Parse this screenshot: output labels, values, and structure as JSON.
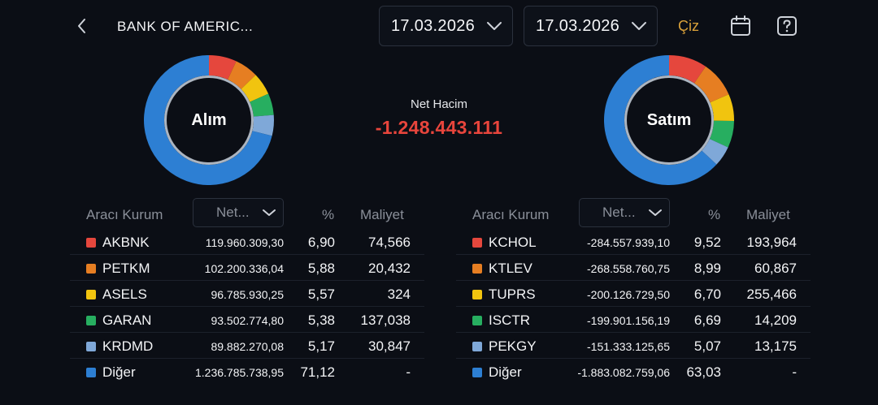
{
  "header": {
    "title": "BANK OF AMERIC...",
    "date_start": "17.03.2026",
    "date_end": "17.03.2026",
    "draw_label": "Çiz"
  },
  "icons": {
    "back": "chevron-left-icon",
    "calendar": "calendar-icon",
    "help": "question-mark-icon",
    "dropdown": "chevron-down-icon"
  },
  "summary": {
    "buy_label": "Alım",
    "sell_label": "Satım",
    "net_label": "Net Hacim",
    "net_value": "-1.248.443.111",
    "net_color": "#e8453c"
  },
  "colors": {
    "red": "#e5473d",
    "orange": "#e67e22",
    "yellow": "#f1c40f",
    "green": "#27ae60",
    "lightblue": "#7fa8d8",
    "blue": "#2d7fd3"
  },
  "buy_table": {
    "headers": {
      "broker": "Aracı Kurum",
      "net": "Net...",
      "pct": "%",
      "cost": "Maliyet"
    },
    "rows": [
      {
        "name": "AKBNK",
        "net": "119.960.309,30",
        "pct": "6,90",
        "cost": "74,566",
        "color": "#e5473d",
        "share": 6.9
      },
      {
        "name": "PETKM",
        "net": "102.200.336,04",
        "pct": "5,88",
        "cost": "20,432",
        "color": "#e67e22",
        "share": 5.88
      },
      {
        "name": "ASELS",
        "net": "96.785.930,25",
        "pct": "5,57",
        "cost": "324",
        "color": "#f1c40f",
        "share": 5.57
      },
      {
        "name": "GARAN",
        "net": "93.502.774,80",
        "pct": "5,38",
        "cost": "137,038",
        "color": "#27ae60",
        "share": 5.38
      },
      {
        "name": "KRDMD",
        "net": "89.882.270,08",
        "pct": "5,17",
        "cost": "30,847",
        "color": "#7fa8d8",
        "share": 5.17
      },
      {
        "name": "Diğer",
        "net": "1.236.785.738,95",
        "pct": "71,12",
        "cost": "-",
        "color": "#2d7fd3",
        "share": 71.12
      }
    ]
  },
  "sell_table": {
    "headers": {
      "broker": "Aracı Kurum",
      "net": "Net...",
      "pct": "%",
      "cost": "Maliyet"
    },
    "rows": [
      {
        "name": "KCHOL",
        "net": "-284.557.939,10",
        "pct": "9,52",
        "cost": "193,964",
        "color": "#e5473d",
        "share": 9.52
      },
      {
        "name": "KTLEV",
        "net": "-268.558.760,75",
        "pct": "8,99",
        "cost": "60,867",
        "color": "#e67e22",
        "share": 8.99
      },
      {
        "name": "TUPRS",
        "net": "-200.126.729,50",
        "pct": "6,70",
        "cost": "255,466",
        "color": "#f1c40f",
        "share": 6.7
      },
      {
        "name": "ISCTR",
        "net": "-199.901.156,19",
        "pct": "6,69",
        "cost": "14,209",
        "color": "#27ae60",
        "share": 6.69
      },
      {
        "name": "PEKGY",
        "net": "-151.333.125,65",
        "pct": "5,07",
        "cost": "13,175",
        "color": "#7fa8d8",
        "share": 5.07
      },
      {
        "name": "Diğer",
        "net": "-1.883.082.759,06",
        "pct": "63,03",
        "cost": "-",
        "color": "#2d7fd3",
        "share": 63.03
      }
    ]
  }
}
